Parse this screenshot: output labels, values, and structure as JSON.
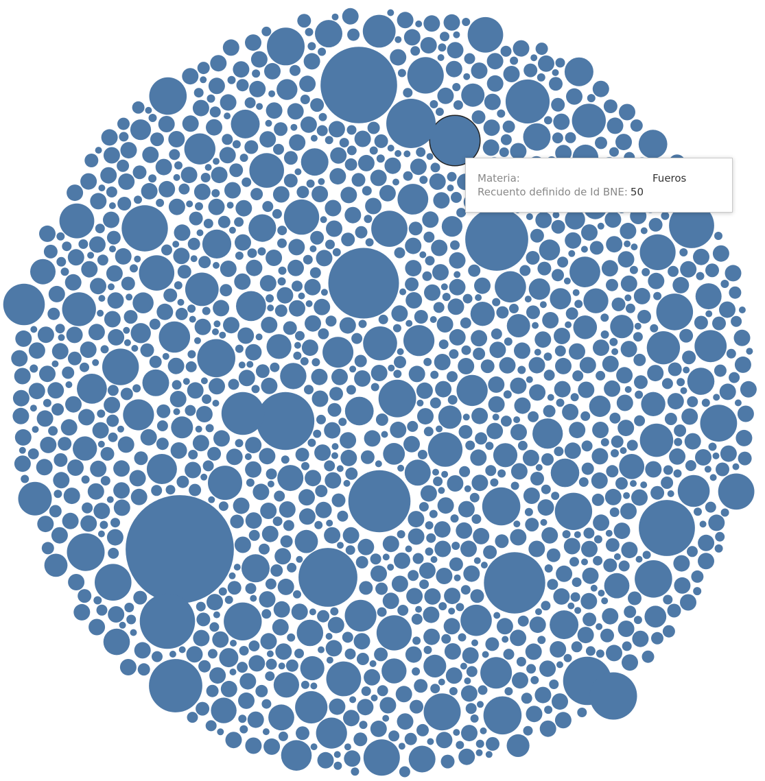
{
  "chart_data": {
    "type": "bubble",
    "title": "",
    "mark_color": "#4e79a7",
    "highlight_stroke": "#222222",
    "highlighted": {
      "materia": "Fueros",
      "recuento": 50
    },
    "bubbles": [
      {
        "count": 230
      },
      {
        "count": 115
      },
      {
        "count": 98
      },
      {
        "count": 78
      },
      {
        "count": 76
      },
      {
        "count": 74
      },
      {
        "count": 68
      },
      {
        "count": 66
      },
      {
        "count": 62
      },
      {
        "count": 60
      },
      {
        "count": 56
      },
      {
        "count": 50
      },
      {
        "count": 48
      },
      {
        "count": 46
      },
      {
        "count": 44
      },
      {
        "count": 42
      },
      {
        "count": 40
      },
      {
        "count": 38
      },
      {
        "count": 36
      },
      {
        "count": 34
      }
    ]
  },
  "tooltip": {
    "materia_label": "Materia:",
    "materia_value": "Fueros",
    "count_label": "Recuento definido de Id BNE:",
    "count_value": "50"
  }
}
